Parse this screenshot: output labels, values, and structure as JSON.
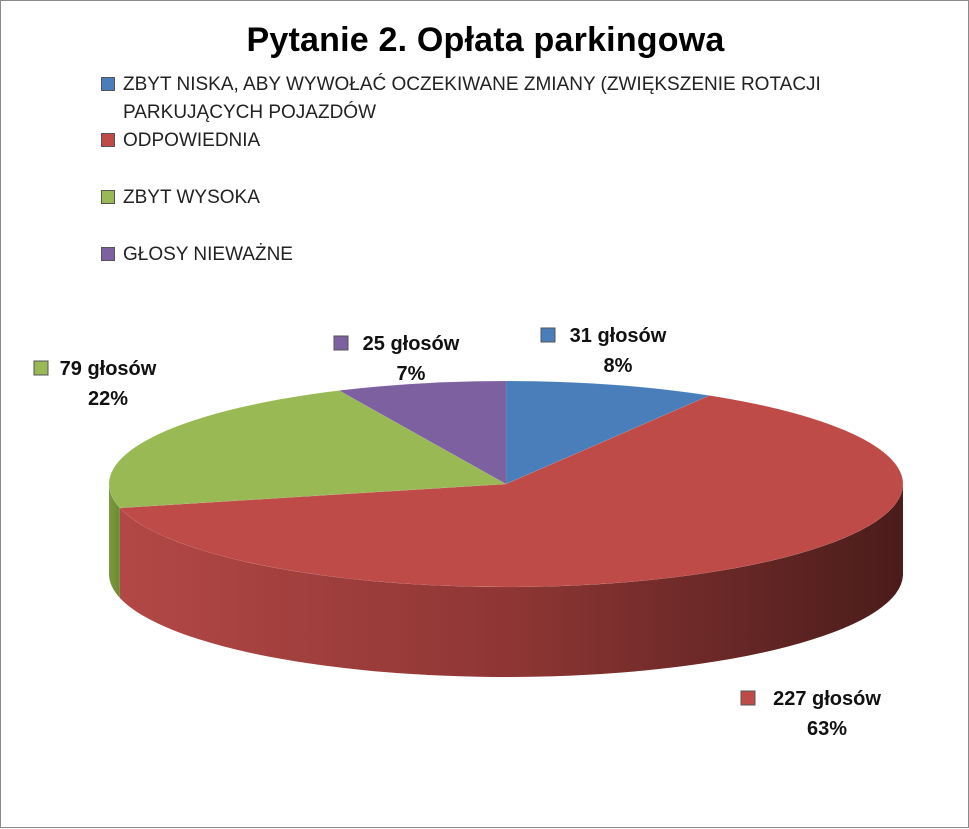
{
  "chart_data": {
    "type": "pie",
    "title": "Pytanie 2. Opłata parkingowa",
    "legend_position": "top",
    "categories": [
      "ZBYT NISKA, ABY WYWOŁAĆ OCZEKIWANE ZMIANY (ZWIĘKSZENIE ROTACJI PARKUJĄCYCH POJAZDÓW",
      "ODPOWIEDNIA",
      "ZBYT WYSOKA",
      "GŁOSY NIEWAŻNE"
    ],
    "legend_lines": [
      [
        "ZBYT NISKA, ABY WYWOŁAĆ OCZEKIWANE ZMIANY (ZWIĘKSZENIE ROTACJI",
        "PARKUJĄCYCH POJAZDÓW"
      ],
      [
        "ODPOWIEDNIA"
      ],
      [
        "ZBYT WYSOKA"
      ],
      [
        "GŁOSY NIEWAŻNE"
      ]
    ],
    "values": [
      31,
      227,
      79,
      25
    ],
    "data_labels": [
      {
        "count": "31 głosów",
        "percent": "8%"
      },
      {
        "count": "227 głosów",
        "percent": "63%"
      },
      {
        "count": "79 głosów",
        "percent": "22%"
      },
      {
        "count": "25 głosów",
        "percent": "7%"
      }
    ],
    "colors": [
      "#4a7ebb",
      "#be4b48",
      "#98b954",
      "#7d60a0"
    ],
    "side_colors": [
      "#2f5583",
      "#7e2b2a",
      "#63792f",
      "#4f3a68"
    ],
    "style": "3d"
  }
}
